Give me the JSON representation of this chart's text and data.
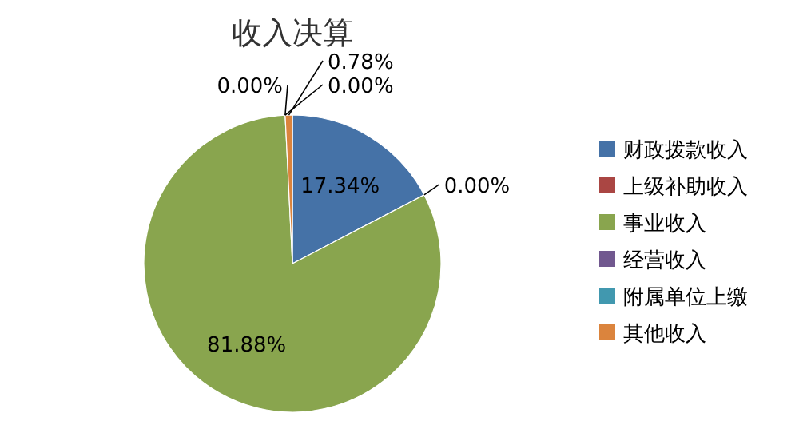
{
  "chart_data": {
    "type": "pie",
    "title": "收入决算",
    "categories": [
      "财政拨款收入",
      "上级补助收入",
      "事业收入",
      "经营收入",
      "附属单位上缴",
      "其他收入"
    ],
    "values": [
      17.34,
      0.0,
      81.88,
      0.0,
      0.0,
      0.78
    ],
    "value_labels": [
      "17.34%",
      "0.00%",
      "81.88%",
      "0.00%",
      "0.00%",
      "0.78%"
    ],
    "colors": [
      "#4572a7",
      "#aa4643",
      "#89a54e",
      "#71588f",
      "#4198af",
      "#db843d"
    ],
    "legend": "right"
  }
}
